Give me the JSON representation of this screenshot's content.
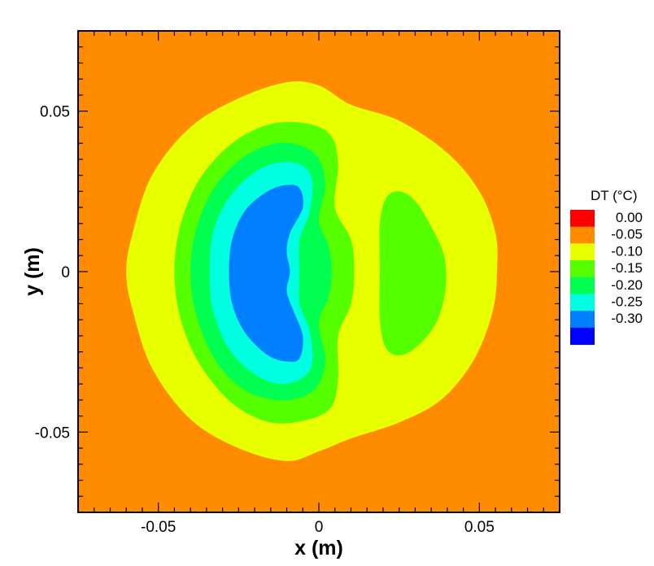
{
  "chart_data": {
    "type": "contour",
    "title": "",
    "xlabel": "x (m)",
    "ylabel": "y (m)",
    "xlim": [
      -0.075,
      0.075
    ],
    "ylim": [
      -0.075,
      0.075
    ],
    "x_ticks": [
      {
        "value": -0.05,
        "label": "-0.05"
      },
      {
        "value": 0,
        "label": "0"
      },
      {
        "value": 0.05,
        "label": "0.05"
      }
    ],
    "y_ticks": [
      {
        "value": 0.05,
        "label": "0.05"
      },
      {
        "value": 0,
        "label": "0"
      },
      {
        "value": -0.05,
        "label": "-0.05"
      }
    ],
    "minor_tick_step": 0.005,
    "background_level": "0.00",
    "legend": {
      "title": "DT (°C)",
      "placement": "right",
      "levels": [
        {
          "label": "0.00",
          "color": "#ff0000"
        },
        {
          "label": "-0.05",
          "color": "#ff8c00"
        },
        {
          "label": "-0.10",
          "color": "#e8ff00"
        },
        {
          "label": "-0.15",
          "color": "#55ff00"
        },
        {
          "label": "-0.20",
          "color": "#00ff50"
        },
        {
          "label": "-0.25",
          "color": "#00ffe0"
        },
        {
          "label": "-0.30",
          "color": "#0080ff"
        },
        {
          "label": "",
          "color": "#0000ff"
        }
      ]
    },
    "regions": [
      {
        "name": "outer",
        "color": "#e8ff00",
        "points": [
          [
            -0.06,
            0
          ],
          [
            -0.058,
            0.012
          ],
          [
            -0.052,
            0.03
          ],
          [
            -0.04,
            0.045
          ],
          [
            -0.025,
            0.054
          ],
          [
            -0.01,
            0.059
          ],
          [
            0,
            0.058
          ],
          [
            0.01,
            0.052
          ],
          [
            0.025,
            0.047
          ],
          [
            0.04,
            0.037
          ],
          [
            0.05,
            0.025
          ],
          [
            0.055,
            0.012
          ],
          [
            0.0555,
            0
          ],
          [
            0.054,
            -0.013
          ],
          [
            0.048,
            -0.028
          ],
          [
            0.038,
            -0.04
          ],
          [
            0.025,
            -0.047
          ],
          [
            0.01,
            -0.052
          ],
          [
            0,
            -0.056
          ],
          [
            -0.01,
            -0.059
          ],
          [
            -0.025,
            -0.055
          ],
          [
            -0.04,
            -0.046
          ],
          [
            -0.052,
            -0.03
          ],
          [
            -0.058,
            -0.012
          ]
        ]
      },
      {
        "name": "ring-1",
        "color": "#55ff00",
        "points": [
          [
            -0.045,
            0
          ],
          [
            -0.043,
            0.015
          ],
          [
            -0.037,
            0.029
          ],
          [
            -0.027,
            0.04
          ],
          [
            -0.015,
            0.046
          ],
          [
            -0.003,
            0.046
          ],
          [
            0.004,
            0.042
          ],
          [
            0.006,
            0.033
          ],
          [
            0.005,
            0.02
          ],
          [
            0.01,
            0.01
          ],
          [
            0.011,
            0
          ],
          [
            0.01,
            -0.01
          ],
          [
            0.006,
            -0.02
          ],
          [
            0.006,
            -0.033
          ],
          [
            0.004,
            -0.042
          ],
          [
            -0.003,
            -0.046
          ],
          [
            -0.015,
            -0.047
          ],
          [
            -0.027,
            -0.041
          ],
          [
            -0.037,
            -0.029
          ],
          [
            -0.043,
            -0.015
          ]
        ]
      },
      {
        "name": "ring-2",
        "color": "#00ff50",
        "points": [
          [
            -0.04,
            0
          ],
          [
            -0.038,
            0.014
          ],
          [
            -0.032,
            0.027
          ],
          [
            -0.023,
            0.036
          ],
          [
            -0.013,
            0.04
          ],
          [
            -0.005,
            0.039
          ],
          [
            0,
            0.035
          ],
          [
            0.002,
            0.027
          ],
          [
            0,
            0.016
          ],
          [
            0.003,
            0.008
          ],
          [
            0.004,
            0
          ],
          [
            0.003,
            -0.008
          ],
          [
            0,
            -0.016
          ],
          [
            0.002,
            -0.027
          ],
          [
            0,
            -0.035
          ],
          [
            -0.005,
            -0.039
          ],
          [
            -0.013,
            -0.04
          ],
          [
            -0.023,
            -0.037
          ],
          [
            -0.032,
            -0.028
          ],
          [
            -0.038,
            -0.014
          ]
        ]
      },
      {
        "name": "ring-3",
        "color": "#00ffe0",
        "points": [
          [
            -0.034,
            0
          ],
          [
            -0.033,
            0.012
          ],
          [
            -0.028,
            0.023
          ],
          [
            -0.02,
            0.031
          ],
          [
            -0.012,
            0.034
          ],
          [
            -0.005,
            0.033
          ],
          [
            -0.002,
            0.028
          ],
          [
            -0.003,
            0.018
          ],
          [
            -0.006,
            0.01
          ],
          [
            -0.006,
            0
          ],
          [
            -0.006,
            -0.01
          ],
          [
            -0.003,
            -0.018
          ],
          [
            -0.002,
            -0.028
          ],
          [
            -0.005,
            -0.033
          ],
          [
            -0.012,
            -0.035
          ],
          [
            -0.02,
            -0.032
          ],
          [
            -0.028,
            -0.024
          ],
          [
            -0.033,
            -0.012
          ]
        ]
      },
      {
        "name": "core",
        "color": "#0080ff",
        "points": [
          [
            -0.028,
            0
          ],
          [
            -0.027,
            0.01
          ],
          [
            -0.023,
            0.019
          ],
          [
            -0.016,
            0.025
          ],
          [
            -0.01,
            0.027
          ],
          [
            -0.006,
            0.026
          ],
          [
            -0.005,
            0.02
          ],
          [
            -0.009,
            0.012
          ],
          [
            -0.01,
            0.006
          ],
          [
            -0.009,
            0
          ],
          [
            -0.01,
            -0.006
          ],
          [
            -0.008,
            -0.012
          ],
          [
            -0.005,
            -0.02
          ],
          [
            -0.006,
            -0.027
          ],
          [
            -0.01,
            -0.028
          ],
          [
            -0.016,
            -0.026
          ],
          [
            -0.023,
            -0.019
          ],
          [
            -0.027,
            -0.01
          ]
        ]
      },
      {
        "name": "right-lobe",
        "color": "#55ff00",
        "points": [
          [
            0.019,
            0
          ],
          [
            0.019,
            0.015
          ],
          [
            0.021,
            0.023
          ],
          [
            0.025,
            0.025
          ],
          [
            0.03,
            0.022
          ],
          [
            0.035,
            0.014
          ],
          [
            0.039,
            0.005
          ],
          [
            0.0395,
            -0.005
          ],
          [
            0.037,
            -0.015
          ],
          [
            0.032,
            -0.022
          ],
          [
            0.026,
            -0.026
          ],
          [
            0.021,
            -0.024
          ],
          [
            0.019,
            -0.015
          ]
        ]
      }
    ]
  }
}
